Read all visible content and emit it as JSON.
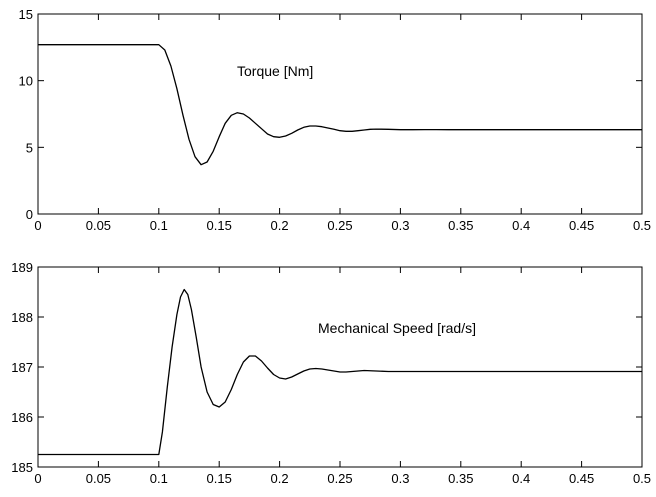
{
  "chart_data": [
    {
      "type": "line",
      "title": "",
      "xlabel": "",
      "ylabel": "",
      "annotation": "Torque [Nm]",
      "xlim": [
        0,
        0.5
      ],
      "ylim": [
        0,
        15
      ],
      "xticks": [
        0,
        0.05,
        0.1,
        0.15,
        0.2,
        0.25,
        0.3,
        0.35,
        0.4,
        0.45,
        0.5
      ],
      "xtick_labels": [
        "0",
        "0.05",
        "0.1",
        "0.15",
        "0.2",
        "0.25",
        "0.3",
        "0.35",
        "0.4",
        "0.45",
        "0.5"
      ],
      "yticks": [
        0,
        5,
        10,
        15
      ],
      "ytick_labels": [
        "0",
        "5",
        "10",
        "15"
      ],
      "grid": false,
      "series": [
        {
          "x": [
            0,
            0.1,
            0.105,
            0.11,
            0.115,
            0.12,
            0.125,
            0.13,
            0.135,
            0.14,
            0.145,
            0.15,
            0.155,
            0.16,
            0.165,
            0.17,
            0.175,
            0.18,
            0.185,
            0.19,
            0.195,
            0.2,
            0.205,
            0.21,
            0.215,
            0.22,
            0.225,
            0.23,
            0.235,
            0.24,
            0.245,
            0.25,
            0.255,
            0.26,
            0.265,
            0.27,
            0.275,
            0.28,
            0.29,
            0.3,
            0.31,
            0.32,
            0.33,
            0.34,
            0.36,
            0.4,
            0.5
          ],
          "y": [
            12.7,
            12.7,
            12.3,
            11.1,
            9.4,
            7.4,
            5.6,
            4.3,
            3.7,
            3.9,
            4.7,
            5.8,
            6.8,
            7.4,
            7.6,
            7.5,
            7.2,
            6.8,
            6.4,
            6.0,
            5.8,
            5.75,
            5.85,
            6.05,
            6.3,
            6.5,
            6.6,
            6.6,
            6.55,
            6.45,
            6.35,
            6.25,
            6.2,
            6.2,
            6.25,
            6.3,
            6.35,
            6.37,
            6.35,
            6.32,
            6.32,
            6.33,
            6.33,
            6.32,
            6.32,
            6.32,
            6.32
          ]
        }
      ]
    },
    {
      "type": "line",
      "title": "",
      "xlabel": "",
      "ylabel": "",
      "annotation": "Mechanical Speed [rad/s]",
      "xlim": [
        0,
        0.5
      ],
      "ylim": [
        185,
        189
      ],
      "xticks": [
        0,
        0.05,
        0.1,
        0.15,
        0.2,
        0.25,
        0.3,
        0.35,
        0.4,
        0.45,
        0.5
      ],
      "xtick_labels": [
        "0",
        "0.05",
        "0.1",
        "0.15",
        "0.2",
        "0.25",
        "0.3",
        "0.35",
        "0.4",
        "0.45",
        "0.5"
      ],
      "yticks": [
        185,
        186,
        187,
        188,
        189
      ],
      "ytick_labels": [
        "185",
        "186",
        "187",
        "188",
        "189"
      ],
      "grid": false,
      "series": [
        {
          "x": [
            0,
            0.1,
            0.103,
            0.107,
            0.111,
            0.115,
            0.118,
            0.121,
            0.124,
            0.127,
            0.131,
            0.135,
            0.14,
            0.145,
            0.15,
            0.155,
            0.16,
            0.165,
            0.17,
            0.175,
            0.18,
            0.185,
            0.19,
            0.195,
            0.2,
            0.205,
            0.21,
            0.215,
            0.22,
            0.225,
            0.23,
            0.235,
            0.24,
            0.245,
            0.25,
            0.255,
            0.26,
            0.265,
            0.27,
            0.28,
            0.29,
            0.3,
            0.31,
            0.32,
            0.33,
            0.34,
            0.36,
            0.4,
            0.5
          ],
          "y": [
            185.25,
            185.25,
            185.7,
            186.6,
            187.4,
            188.05,
            188.4,
            188.55,
            188.45,
            188.15,
            187.6,
            187.0,
            186.5,
            186.25,
            186.2,
            186.3,
            186.55,
            186.85,
            187.1,
            187.22,
            187.22,
            187.12,
            186.98,
            186.85,
            186.78,
            186.76,
            186.8,
            186.86,
            186.92,
            186.96,
            186.97,
            186.96,
            186.94,
            186.92,
            186.9,
            186.9,
            186.91,
            186.92,
            186.93,
            186.92,
            186.91,
            186.91,
            186.91,
            186.91,
            186.91,
            186.91,
            186.91,
            186.91,
            186.91
          ]
        }
      ]
    }
  ]
}
